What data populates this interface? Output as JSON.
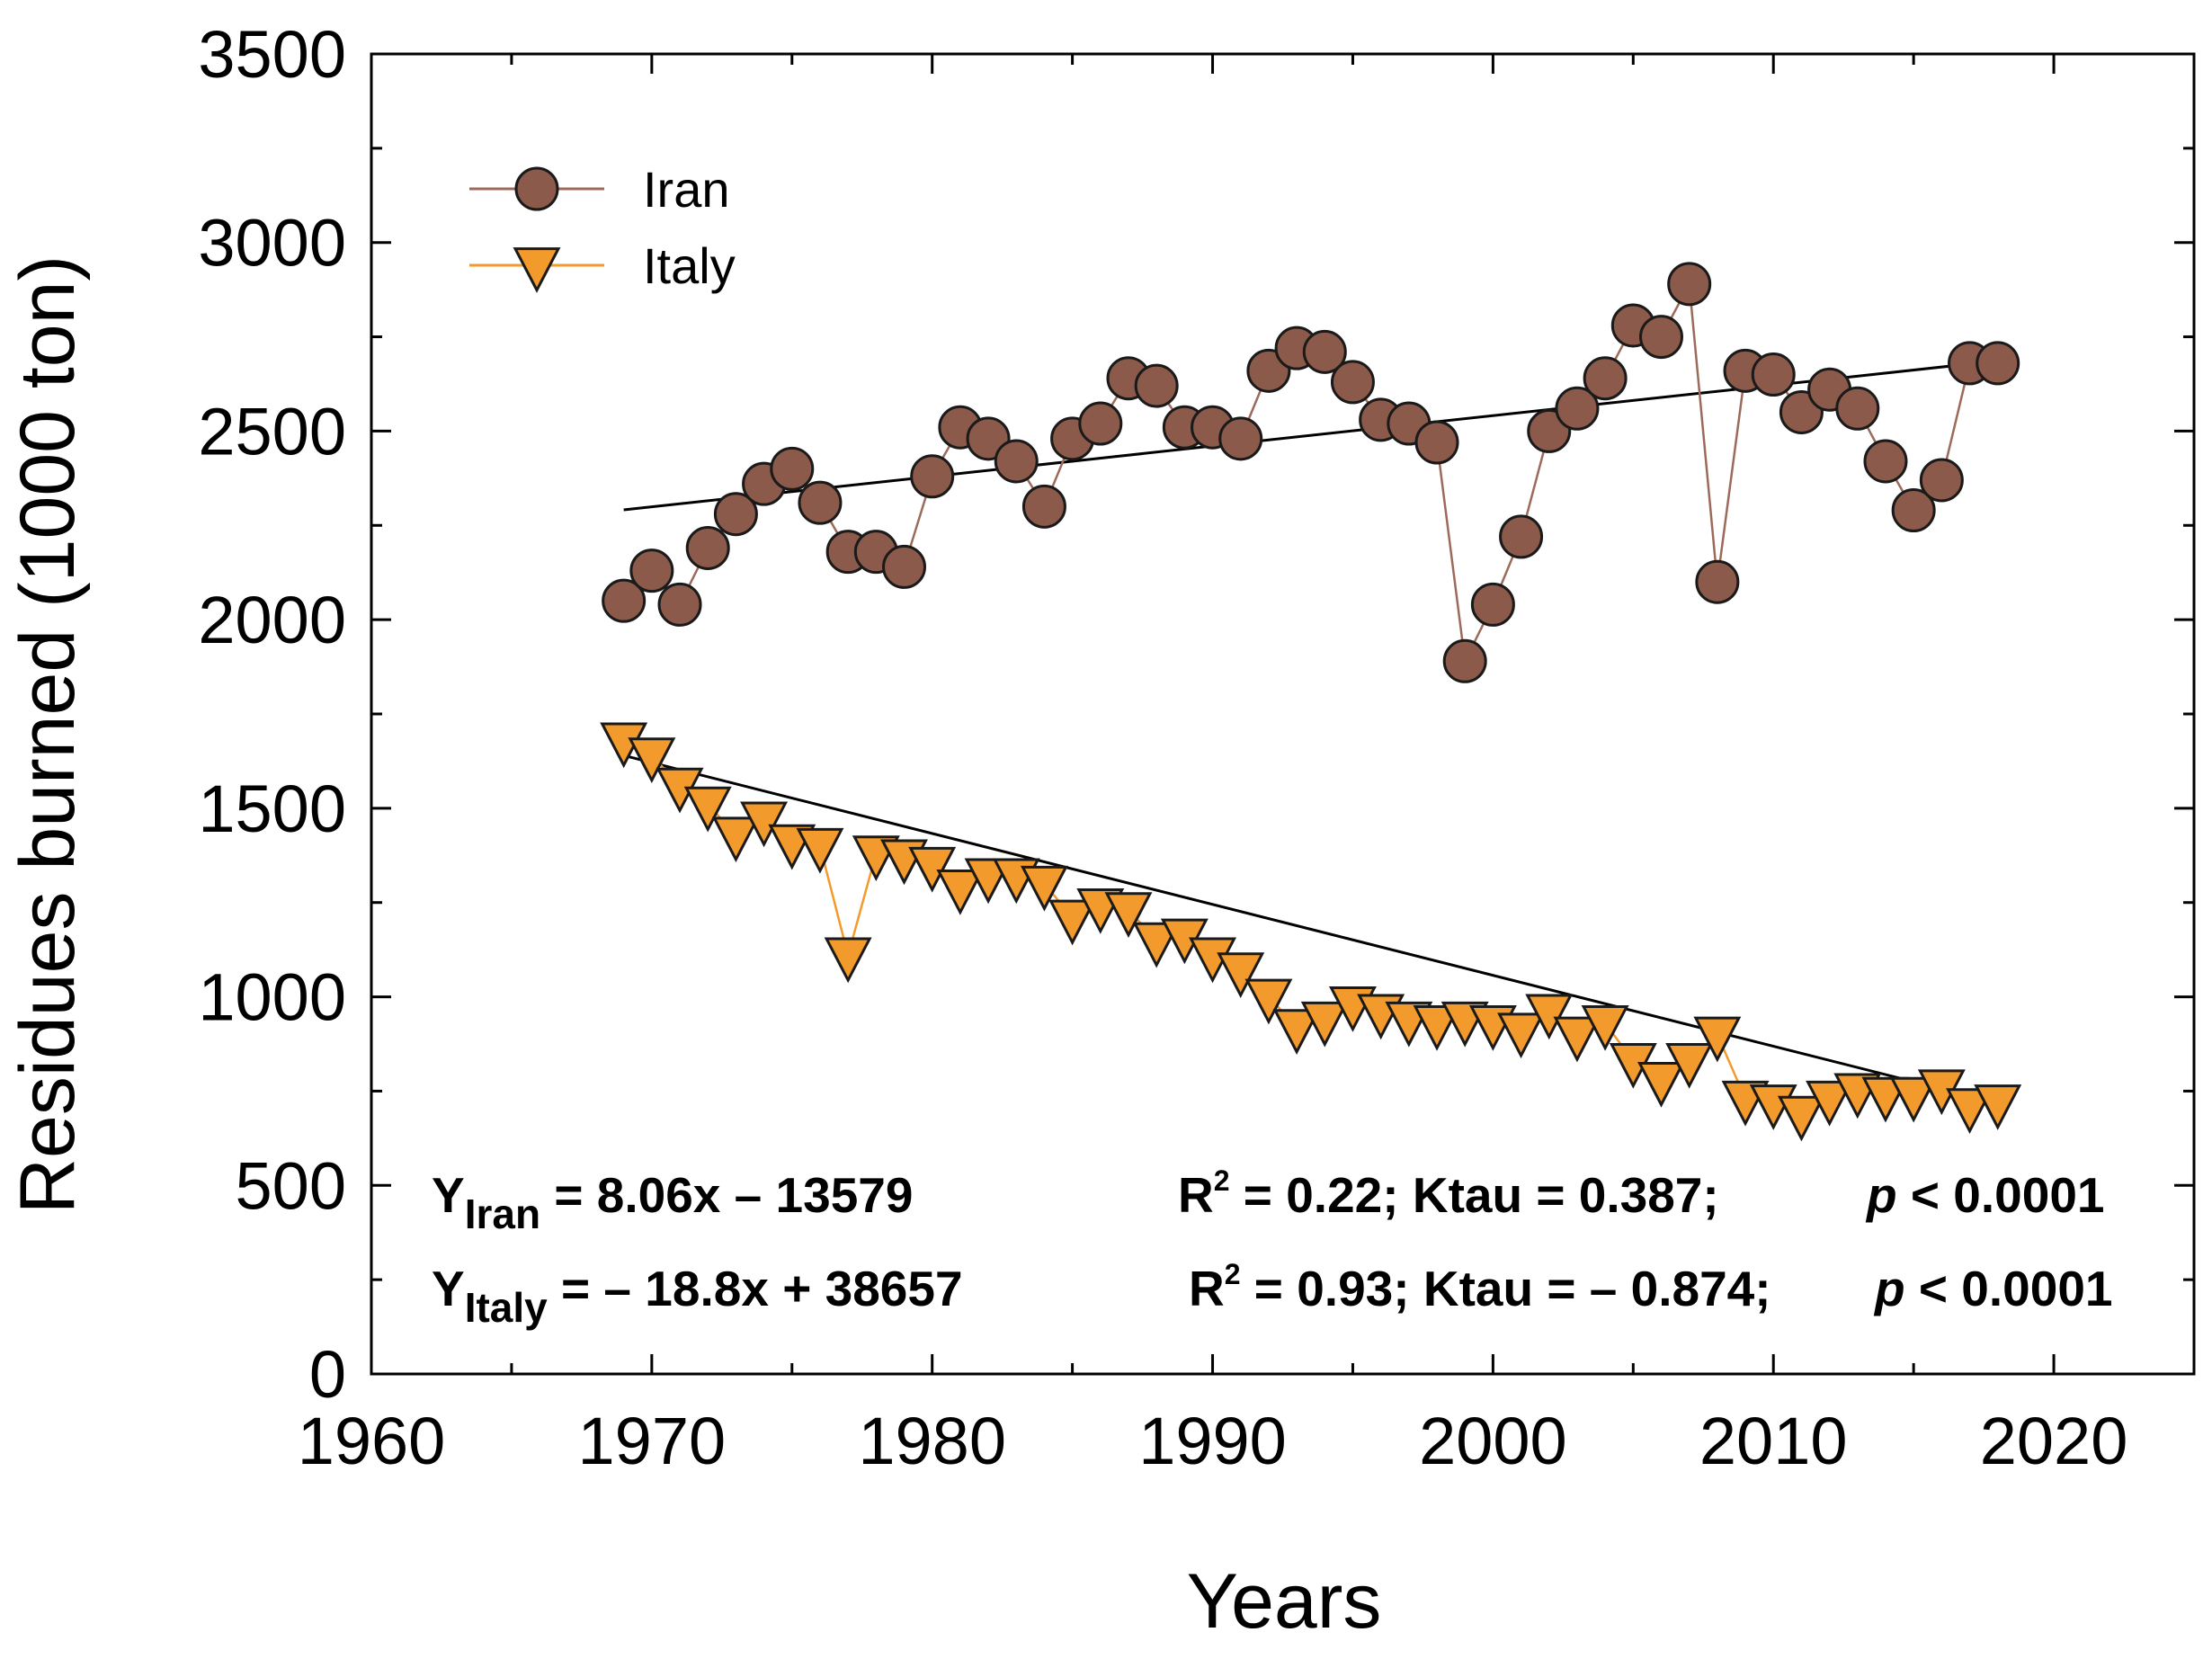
{
  "chart_data": {
    "type": "line",
    "title": "",
    "xlabel": "Years",
    "ylabel": "Residues burned (1000 ton)",
    "xlim": [
      1960,
      2025
    ],
    "ylim": [
      0,
      3500
    ],
    "xticks": [
      1960,
      1970,
      1980,
      1990,
      2000,
      2010,
      2020
    ],
    "yticks": [
      0,
      500,
      1000,
      1500,
      2000,
      2500,
      3000,
      3500
    ],
    "legend_position": "top-left",
    "x": [
      1969,
      1970,
      1971,
      1972,
      1973,
      1974,
      1975,
      1976,
      1977,
      1978,
      1979,
      1980,
      1981,
      1982,
      1983,
      1984,
      1985,
      1986,
      1987,
      1988,
      1989,
      1990,
      1991,
      1992,
      1993,
      1994,
      1995,
      1996,
      1997,
      1998,
      1999,
      2000,
      2001,
      2002,
      2003,
      2004,
      2005,
      2006,
      2007,
      2008,
      2009,
      2010,
      2011,
      2012,
      2013,
      2014,
      2015,
      2016,
      2017,
      2018
    ],
    "series": [
      {
        "name": "Iran",
        "color": "#8B5A4A",
        "line_color": "#9C6A5A",
        "marker": "circle",
        "values": [
          2050,
          2130,
          2040,
          2190,
          2280,
          2360,
          2400,
          2310,
          2180,
          2180,
          2140,
          2380,
          2510,
          2480,
          2420,
          2300,
          2480,
          2520,
          2640,
          2620,
          2510,
          2510,
          2480,
          2660,
          2720,
          2710,
          2630,
          2530,
          2520,
          2470,
          1890,
          2040,
          2220,
          2500,
          2560,
          2640,
          2780,
          2750,
          2890,
          2100,
          2660,
          2650,
          2550,
          2610,
          2560,
          2420,
          2290,
          2370,
          2680,
          2680
        ],
        "trend": {
          "slope": 8.06,
          "intercept": -13579,
          "x_range": [
            1969,
            2018
          ]
        }
      },
      {
        "name": "Italy",
        "color": "#F39A2C",
        "line_color": "#F39A2C",
        "marker": "triangle-down",
        "values": [
          1680,
          1640,
          1560,
          1510,
          1430,
          1470,
          1410,
          1400,
          1110,
          1380,
          1370,
          1350,
          1290,
          1320,
          1320,
          1300,
          1210,
          1240,
          1230,
          1150,
          1160,
          1110,
          1070,
          1000,
          920,
          940,
          980,
          960,
          940,
          930,
          940,
          930,
          910,
          960,
          900,
          930,
          830,
          780,
          830,
          900,
          730,
          720,
          690,
          730,
          750,
          740,
          740,
          760,
          710,
          720
        ],
        "trend": {
          "slope": -18.8,
          "intercept": 38657,
          "x_range": [
            1969,
            2018
          ]
        }
      }
    ],
    "annotations": {
      "iran_equation": {
        "y": "Y",
        "sub": "Iran",
        "rest": " = 8.06x – 13579"
      },
      "iran_stats": {
        "r": "R",
        "sup": "2",
        "rest": " = 0.22; Ktau = 0.387;",
        "p": "p",
        "prest": " < 0.0001"
      },
      "italy_equation": {
        "y": "Y",
        "sub": "Italy",
        "rest": " = – 18.8x + 38657"
      },
      "italy_stats": {
        "r": "R",
        "sup": "2",
        "rest": " = 0.93; Ktau = – 0.874;",
        "p": "p",
        "prest": " < 0.0001"
      }
    }
  }
}
